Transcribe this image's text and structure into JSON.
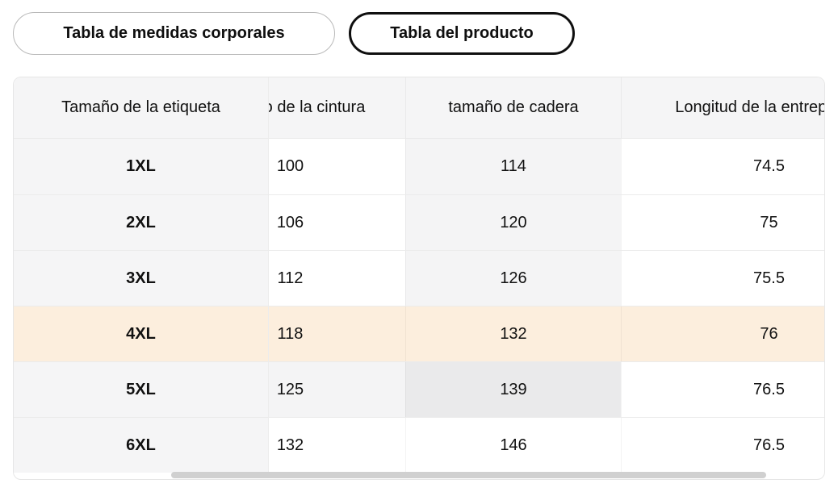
{
  "tabs": [
    {
      "label": "Tabla de medidas corporales",
      "selected": false
    },
    {
      "label": "Tabla del producto",
      "selected": true
    }
  ],
  "table": {
    "columns": [
      "Tamaño de la etiqueta",
      "Tamaño de la cintura",
      "tamaño de cadera",
      "Longitud de la entrepierna"
    ],
    "rows": [
      {
        "label": "1XL",
        "values": [
          "100",
          "114",
          "74.5"
        ]
      },
      {
        "label": "2XL",
        "values": [
          "106",
          "120",
          "75"
        ]
      },
      {
        "label": "3XL",
        "values": [
          "112",
          "126",
          "75.5"
        ]
      },
      {
        "label": "4XL",
        "values": [
          "118",
          "132",
          "76"
        ]
      },
      {
        "label": "5XL",
        "values": [
          "125",
          "139",
          "76.5"
        ]
      },
      {
        "label": "6XL",
        "values": [
          "132",
          "146",
          "76.5"
        ]
      }
    ],
    "state": {
      "selected_row": "4XL",
      "hovered_cell": {
        "row": "5XL",
        "column": "tamaño de cadera",
        "value": "139"
      },
      "scrolled_horizontally": true
    },
    "colors": {
      "header_bg": "#f5f5f6",
      "selected_row_bg": "#fceedd",
      "crosshair_path_bg": "#f4f4f5",
      "hovered_cell_bg": "#eaeaeb",
      "scrollbar_thumb": "#d0d0d0",
      "selected_tab_border": "#0f0f0f",
      "tab_border": "#b9b9b9"
    }
  }
}
